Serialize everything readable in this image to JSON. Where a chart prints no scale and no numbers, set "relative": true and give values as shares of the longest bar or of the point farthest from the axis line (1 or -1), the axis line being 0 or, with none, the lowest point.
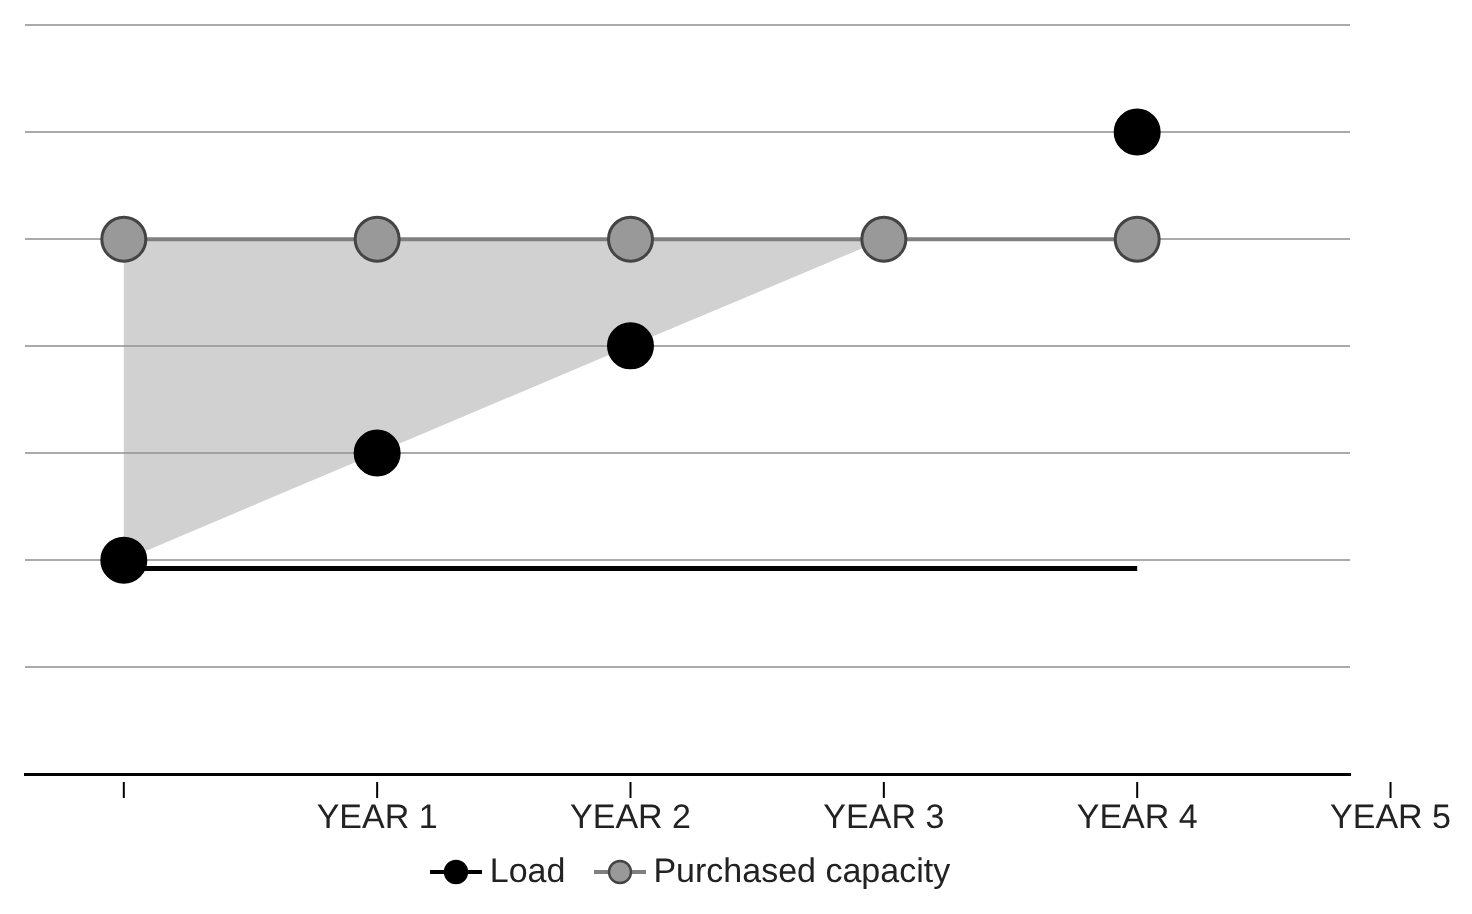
{
  "chart_data": {
    "type": "line",
    "relative": true,
    "grid": "y",
    "legend": "bottom",
    "marker": "circle",
    "categories": [
      null,
      "YEAR 1",
      "YEAR 2",
      "YEAR 3",
      "YEAR 4",
      "YEAR 5"
    ],
    "series": [
      {
        "name": "Load",
        "type": "scatter",
        "color": "#000000",
        "values": [
          0.333,
          0.5,
          0.667,
          null,
          1,
          null
        ]
      },
      {
        "name": "Purchased capacity",
        "color": "#999999",
        "values": [
          0.833,
          0.833,
          0.833,
          0.833,
          0.833,
          null
        ],
        "lower": [
          0.333,
          0.5,
          0.667,
          0.833,
          null,
          null
        ],
        "upper": [
          0.833,
          0.833,
          0.833,
          0.833,
          null,
          null
        ]
      },
      {
        "color": "#000000",
        "marker": "none",
        "values": [
          0.32,
          0.32,
          0.32,
          0.32,
          0.32,
          null
        ]
      }
    ]
  }
}
